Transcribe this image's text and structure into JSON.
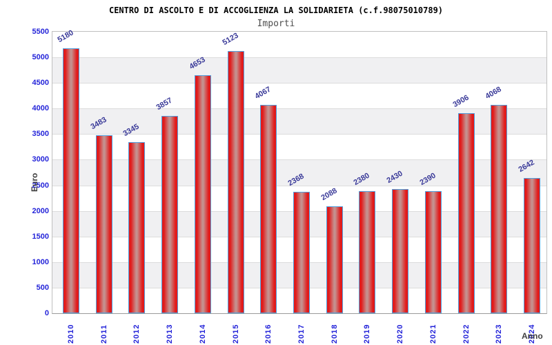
{
  "title": "CENTRO DI ASCOLTO E DI ACCOGLIENZA LA SOLIDARIETA (c.f.98075010789)",
  "subtitle": "Importi",
  "chart_data": {
    "type": "bar",
    "title": "CENTRO DI ASCOLTO E DI ACCOGLIENZA LA SOLIDARIETA (c.f.98075010789)",
    "subtitle": "Importi",
    "categories": [
      "2010",
      "2011",
      "2012",
      "2013",
      "2014",
      "2015",
      "2016",
      "2017",
      "2018",
      "2019",
      "2020",
      "2021",
      "2022",
      "2023",
      "2024"
    ],
    "values": [
      5180,
      3483,
      3345,
      3857,
      4653,
      5123,
      4067,
      2368,
      2088,
      2380,
      2430,
      2390,
      3906,
      4068,
      2642
    ],
    "xlabel": "Anno",
    "ylabel": "Euro",
    "ylim": [
      0,
      5500
    ],
    "yticks": [
      0,
      500,
      1000,
      1500,
      2000,
      2500,
      3000,
      3500,
      4000,
      4500,
      5000,
      5500
    ],
    "grid": true,
    "legend_position": "none",
    "colors": {
      "bar_edge": "#e11b1b",
      "bar_mid": "#c5908e",
      "bar_border": "#4fa0e0",
      "axis_tick_text": "#2424d9",
      "value_label_text": "#3a3a99",
      "band_gray": "#f0f0f2",
      "band_white": "#ffffff",
      "gridline": "#dcdcdc",
      "plot_border": "#bfbfbf",
      "title_text": "#000000",
      "subtitle_text": "#4d4d4d",
      "axis_title_text": "#404040"
    }
  }
}
